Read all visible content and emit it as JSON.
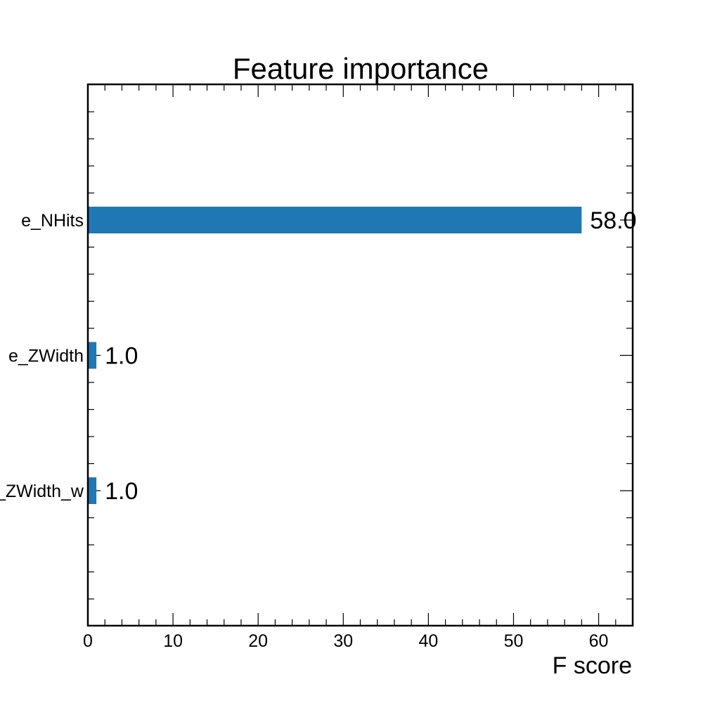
{
  "chart_data": {
    "type": "bar",
    "orientation": "horizontal",
    "title": "Feature importance",
    "xlabel": "F score",
    "ylabel": "",
    "categories": [
      "e_NHits",
      "e_ZWidth",
      "e_ZWidth_w"
    ],
    "values": [
      58,
      1,
      1
    ],
    "value_labels": [
      "58.0",
      "1.0",
      "1.0"
    ],
    "xlim": [
      0,
      64
    ],
    "x_ticks": [
      0,
      10,
      20,
      30,
      40,
      50,
      60
    ],
    "x_tick_labels": [
      "0",
      "10",
      "20",
      "30",
      "40",
      "50",
      "60"
    ],
    "grid": false,
    "colors": {
      "bar": "#1f77b4"
    }
  }
}
